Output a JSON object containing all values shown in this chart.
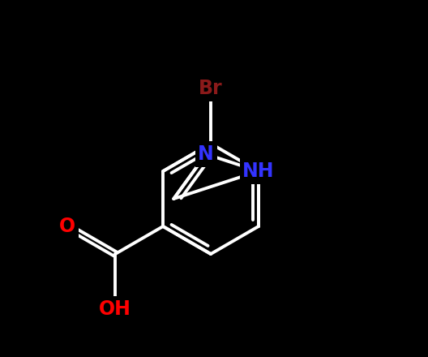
{
  "background_color": "#000000",
  "bond_color": "#ffffff",
  "bond_width": 2.8,
  "atom_labels": {
    "NH": {
      "text": "NH",
      "color": "#3333ff",
      "fontsize": 17,
      "fontweight": "bold"
    },
    "N": {
      "text": "N",
      "color": "#3333ff",
      "fontsize": 17,
      "fontweight": "bold"
    },
    "OH": {
      "text": "OH",
      "color": "#ff0000",
      "fontsize": 17,
      "fontweight": "bold"
    },
    "O": {
      "text": "O",
      "color": "#ff0000",
      "fontsize": 17,
      "fontweight": "bold"
    },
    "Br": {
      "text": "Br",
      "color": "#8b1a1a",
      "fontsize": 17,
      "fontweight": "bold"
    }
  }
}
